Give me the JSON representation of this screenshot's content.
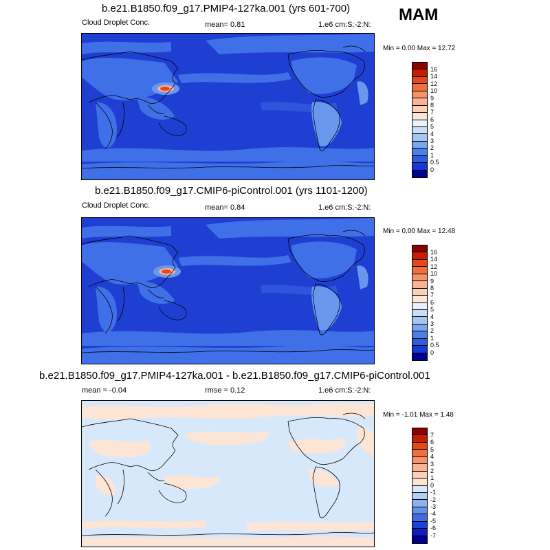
{
  "season": "MAM",
  "panels": [
    {
      "title": "b.e21.B1850.f09_g17.PMIP4-127ka.001 (yrs 601-700)",
      "left_label": "Cloud Droplet Conc.",
      "mid_label": "mean=   0.81",
      "right_label": "1.e6 cm:S:-2:N:",
      "minmax": "Min =   0.00 Max =  12.72",
      "colorbar_labels": [
        "16",
        "14",
        "12",
        "10",
        "9",
        "8",
        "7",
        "6",
        "5",
        "4",
        "3",
        "2",
        "1",
        "0.5",
        "0"
      ],
      "colorbar_colors": [
        "#8b0000",
        "#c81e00",
        "#e8471a",
        "#f0703d",
        "#f5946a",
        "#f8b495",
        "#fbd0b7",
        "#fde5d6",
        "#e9f2fb",
        "#c9dff7",
        "#a6c6f2",
        "#7aa6ec",
        "#4d80e6",
        "#2b5de1",
        "#1538d9",
        "#02008f"
      ]
    },
    {
      "title": "b.e21.B1850.f09_g17.CMIP6-piControl.001 (yrs 1101-1200)",
      "left_label": "Cloud Droplet Conc.",
      "mid_label": "mean=   0.84",
      "right_label": "1.e6 cm:S:-2:N:",
      "minmax": "Min =   0.00 Max =  12.48",
      "colorbar_labels": [
        "16",
        "14",
        "12",
        "10",
        "9",
        "8",
        "7",
        "6",
        "5",
        "4",
        "3",
        "2",
        "1",
        "0.5",
        "0"
      ],
      "colorbar_colors": [
        "#8b0000",
        "#c81e00",
        "#e8471a",
        "#f0703d",
        "#f5946a",
        "#f8b495",
        "#fbd0b7",
        "#fde5d6",
        "#e9f2fb",
        "#c9dff7",
        "#a6c6f2",
        "#7aa6ec",
        "#4d80e6",
        "#2b5de1",
        "#1538d9",
        "#02008f"
      ]
    },
    {
      "title": "b.e21.B1850.f09_g17.PMIP4-127ka.001 - b.e21.B1850.f09_g17.CMIP6-piControl.001",
      "left_label": "mean =  -0.04",
      "mid_label": "rmse =   0.12",
      "right_label": "1.e6 cm:S:-2:N:",
      "minmax": "Min =  -1.01 Max =   1.48",
      "colorbar_labels": [
        "7",
        "6",
        "5",
        "4",
        "3",
        "2",
        "1",
        "0",
        "-1",
        "-2",
        "-3",
        "-4",
        "-5",
        "-6",
        "-7"
      ],
      "colorbar_colors": [
        "#8b0000",
        "#c81e00",
        "#e8471a",
        "#f0703d",
        "#f5946a",
        "#f8b495",
        "#fbd0b7",
        "#fde5d6",
        "#d8e8fb",
        "#b3cff5",
        "#8cb2ef",
        "#6690e9",
        "#3f6be3",
        "#1b42d9",
        "#0a1fbf",
        "#02008f"
      ]
    }
  ],
  "colors": {
    "map_fill_main": "#1f3fd2",
    "map_fill_deep": "#1530b8",
    "map_fill_light": "#3f70e8",
    "map_fill_paler": "#6a97ee",
    "hotspot": "#e8471a",
    "diff_base": "#d8e8fb",
    "diff_pos": "#fde5d6",
    "coast": "#000000"
  }
}
